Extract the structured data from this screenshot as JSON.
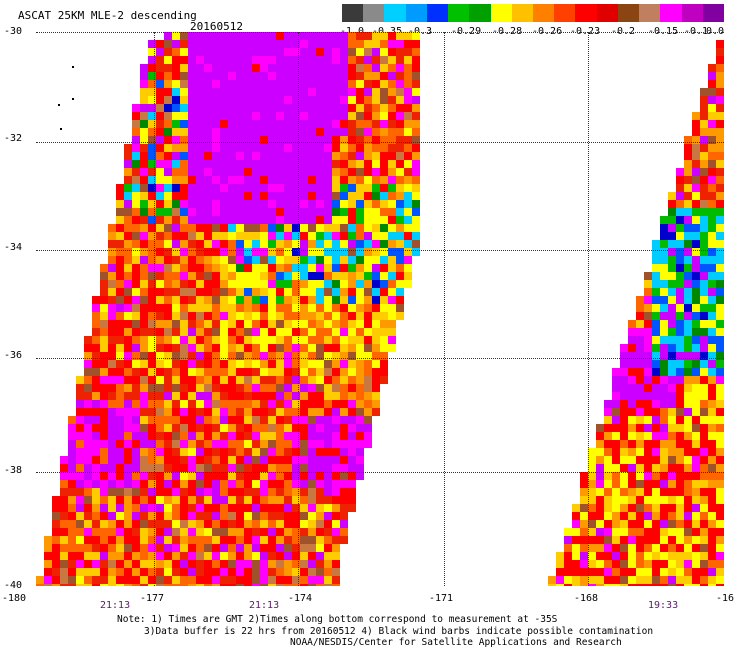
{
  "header": {
    "title": "ASCAT 25KM MLE-2 descending",
    "date": "20160512"
  },
  "colorbar": {
    "colors": [
      "#3a3a3a",
      "#8a8a8a",
      "#00d0ff",
      "#009bff",
      "#0030ff",
      "#00c000",
      "#00a000",
      "#ffff00",
      "#ffc000",
      "#ff8000",
      "#ff4000",
      "#ff0000",
      "#e00000",
      "#8b4513",
      "#c08060",
      "#ff00ff",
      "#c000c0",
      "#8000a0"
    ],
    "labels": [
      "-1.0",
      "-0.35",
      "-0.3",
      "-0.29",
      "-0.28",
      "-0.26",
      "-0.23",
      "-0.2",
      "-0.15",
      "-0.1",
      "0.0"
    ]
  },
  "axes": {
    "y_labels": [
      "-30",
      "-32",
      "-34",
      "-36",
      "-38",
      "-40"
    ],
    "x_labels": [
      "-180",
      "-177",
      "-174",
      "-171",
      "-168",
      "-16"
    ],
    "time_labels": [
      "21:13",
      "21:13",
      "19:33"
    ]
  },
  "note": {
    "line1": "Note: 1) Times are GMT 2)Times along bottom correspond to measurement at -35S",
    "line2": "3)Data buffer is 22 hrs from 20160512 4) Black wind barbs indicate possible contamination",
    "line3": "NOAA/NESDIS/Center for Satellite Applications and Research"
  }
}
